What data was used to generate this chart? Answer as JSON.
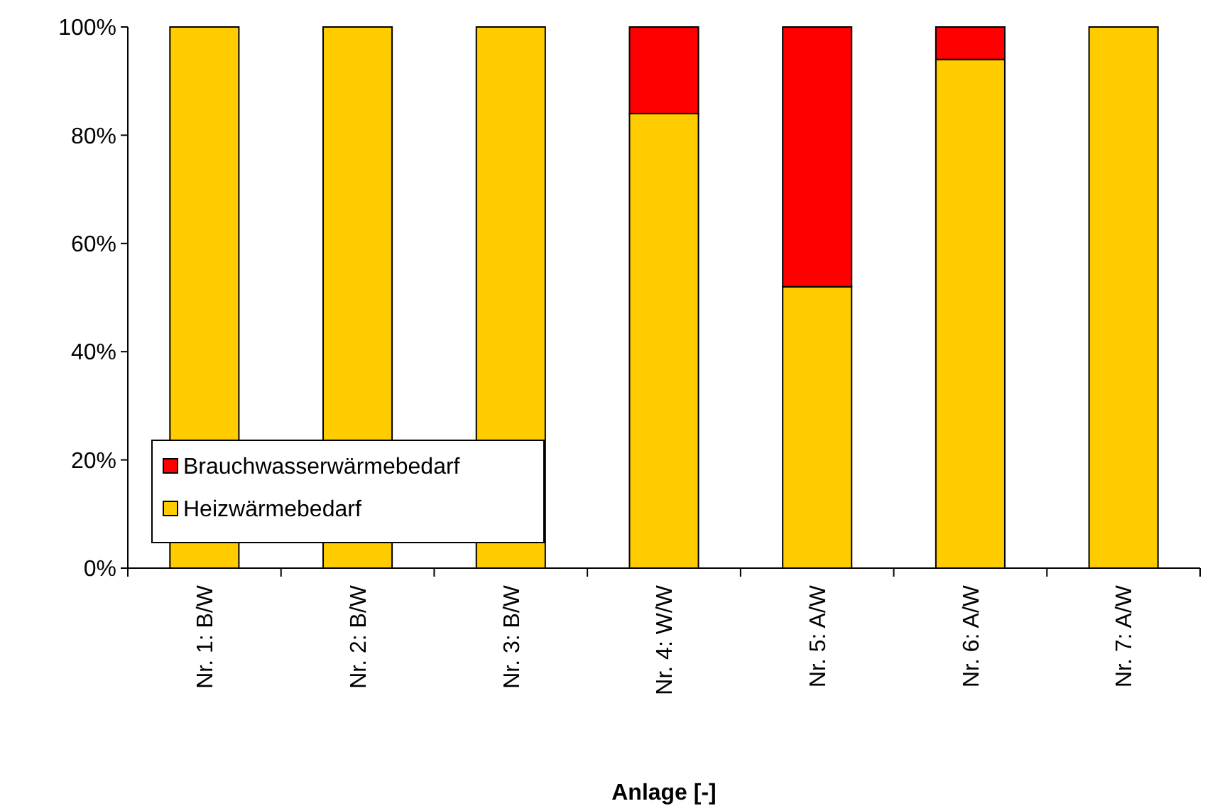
{
  "chart_data": {
    "type": "bar",
    "stacked": true,
    "xlabel": "Anlage [-]",
    "categories": [
      "Nr. 1: B/W",
      "Nr. 2: B/W",
      "Nr. 3: B/W",
      "Nr. 4: W/W",
      "Nr. 5: A/W",
      "Nr. 6: A/W",
      "Nr. 7: A/W"
    ],
    "series": [
      {
        "name": "Heizwärmebedarf",
        "color": "#ffcc00",
        "values": [
          100,
          100,
          100,
          84,
          52,
          94,
          100
        ]
      },
      {
        "name": "Brauchwasserwärmebedarf",
        "color": "#ff0000",
        "values": [
          0,
          0,
          0,
          16,
          48,
          6,
          0
        ]
      }
    ],
    "ylim": [
      0,
      100
    ],
    "yticks": [
      {
        "value": 0,
        "label": "0%"
      },
      {
        "value": 20,
        "label": "20%"
      },
      {
        "value": 40,
        "label": "40%"
      },
      {
        "value": 60,
        "label": "60%"
      },
      {
        "value": 80,
        "label": "80%"
      },
      {
        "value": 100,
        "label": "100%"
      }
    ],
    "legend": "bottom left"
  }
}
